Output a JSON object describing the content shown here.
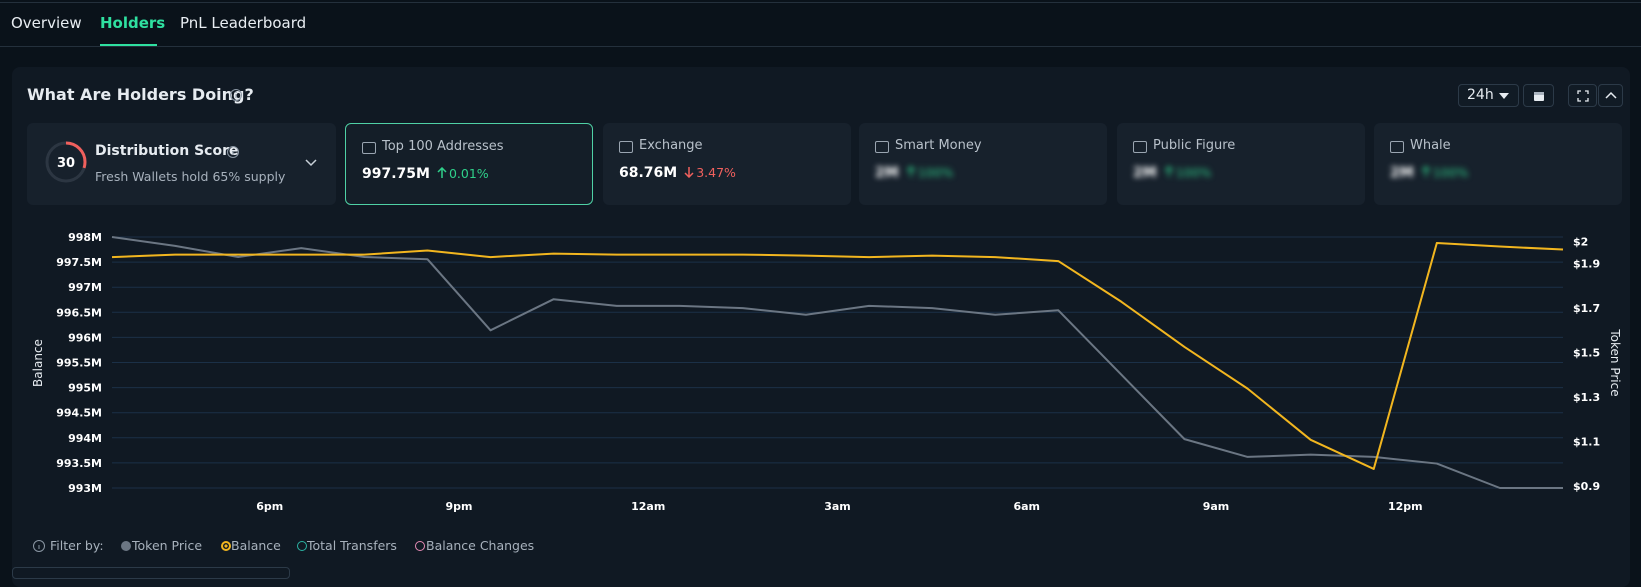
{
  "tabs": [
    "Overview",
    "Holders",
    "PnL Leaderboard"
  ],
  "panel": {
    "title": "What Are Holders Doing?",
    "timeframe": "24h"
  },
  "distribution": {
    "score": 30,
    "label": "Distribution Score",
    "subtitle": "Fresh Wallets hold 65% supply"
  },
  "cards": [
    {
      "label": "Top 100 Addresses",
      "value": "997.75M",
      "change": "0.01%",
      "direction": "up",
      "selected": true
    },
    {
      "label": "Exchange",
      "value": "68.76M",
      "change": "3.47%",
      "direction": "down"
    },
    {
      "label": "Smart Money",
      "value": "2M",
      "change": "100%",
      "direction": "up",
      "blurred": true
    },
    {
      "label": "Public Figure",
      "value": "2M",
      "change": "100%",
      "direction": "up",
      "blurred": true
    },
    {
      "label": "Whale",
      "value": "2M",
      "change": "100%",
      "direction": "up",
      "blurred": true
    }
  ],
  "chart_data": {
    "type": "line",
    "y_label": "Balance",
    "y2_label": "Token Price",
    "x": [
      0,
      1,
      2,
      3,
      4,
      5,
      6,
      7,
      8,
      9,
      10,
      11,
      12,
      13,
      14,
      15,
      16,
      17,
      18,
      19,
      20,
      21,
      22,
      23
    ],
    "xlim": [
      0,
      23
    ],
    "xticks": [
      {
        "value": 2.5,
        "label": "6pm"
      },
      {
        "value": 5.5,
        "label": "9pm"
      },
      {
        "value": 8.5,
        "label": "12am"
      },
      {
        "value": 11.5,
        "label": "3am"
      },
      {
        "value": 14.5,
        "label": "6am"
      },
      {
        "value": 17.5,
        "label": "9am"
      },
      {
        "value": 20.5,
        "label": "12pm"
      }
    ],
    "ylim": [
      993000000,
      998000000
    ],
    "yticks": [
      {
        "value": 993000000,
        "label": "993M"
      },
      {
        "value": 993500000,
        "label": "993.5M"
      },
      {
        "value": 994000000,
        "label": "994M"
      },
      {
        "value": 994500000,
        "label": "994.5M"
      },
      {
        "value": 995000000,
        "label": "995M"
      },
      {
        "value": 995500000,
        "label": "995.5M"
      },
      {
        "value": 996000000,
        "label": "996M"
      },
      {
        "value": 996500000,
        "label": "996.5M"
      },
      {
        "value": 997000000,
        "label": "997M"
      },
      {
        "value": 997500000,
        "label": "997.5M"
      },
      {
        "value": 998000000,
        "label": "998M"
      }
    ],
    "y2lim": [
      0.89,
      2.02
    ],
    "y2ticks": [
      {
        "value": 0.9,
        "label": "$0.9"
      },
      {
        "value": 1.1,
        "label": "$1.1"
      },
      {
        "value": 1.3,
        "label": "$1.3"
      },
      {
        "value": 1.5,
        "label": "$1.5"
      },
      {
        "value": 1.7,
        "label": "$1.7"
      },
      {
        "value": 1.9,
        "label": "$1.9"
      },
      {
        "value": 2,
        "label": "$2"
      }
    ],
    "grid": true,
    "series": [
      {
        "name": "Token Price",
        "color": "#6b7683",
        "axis": "y2",
        "values": [
          2.02,
          1.98,
          1.93,
          1.97,
          1.93,
          1.92,
          1.6,
          1.74,
          1.71,
          1.71,
          1.7,
          1.67,
          1.71,
          1.7,
          1.67,
          1.69,
          1.4,
          1.11,
          1.03,
          1.04,
          1.03,
          1.0,
          0.89,
          0.89
        ]
      },
      {
        "name": "Balance",
        "color": "#f2b61f",
        "values": [
          997600000,
          997650000,
          997650000,
          997650000,
          997650000,
          997730000,
          997600000,
          997670000,
          997650000,
          997650000,
          997650000,
          997630000,
          997600000,
          997630000,
          997600000,
          997520000,
          996710000,
          995810000,
          994980000,
          993960000,
          993380000,
          997880000,
          997810000,
          997750000
        ]
      }
    ]
  },
  "filters": {
    "label": "Filter by:",
    "others": [
      "Total Transfers",
      "Balance Changes"
    ]
  }
}
